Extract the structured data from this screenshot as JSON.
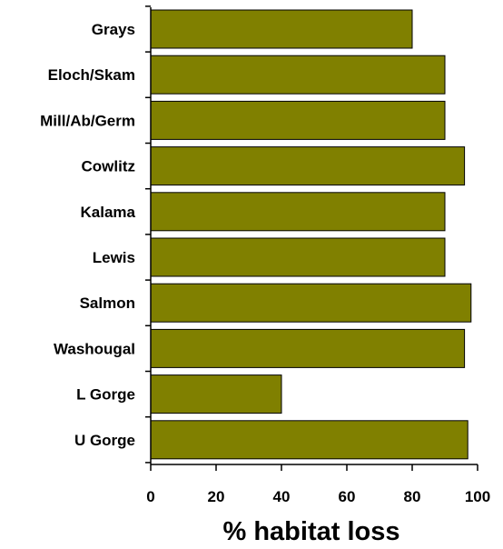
{
  "chart_data": {
    "type": "bar",
    "orientation": "horizontal",
    "categories": [
      "Grays",
      "Eloch/Skam",
      "Mill/Ab/Germ",
      "Cowlitz",
      "Kalama",
      "Lewis",
      "Salmon",
      "Washougal",
      "L Gorge",
      "U Gorge"
    ],
    "values": [
      80,
      90,
      90,
      96,
      90,
      90,
      98,
      96,
      40,
      97
    ],
    "xlabel": "% habitat loss",
    "ylabel": "",
    "title": "",
    "xlim": [
      0,
      100
    ],
    "xticks": [
      0,
      20,
      40,
      60,
      80,
      100
    ],
    "bar_color": "#808000",
    "bar_edge_color": "#000000",
    "grid": false,
    "legend": "none"
  }
}
